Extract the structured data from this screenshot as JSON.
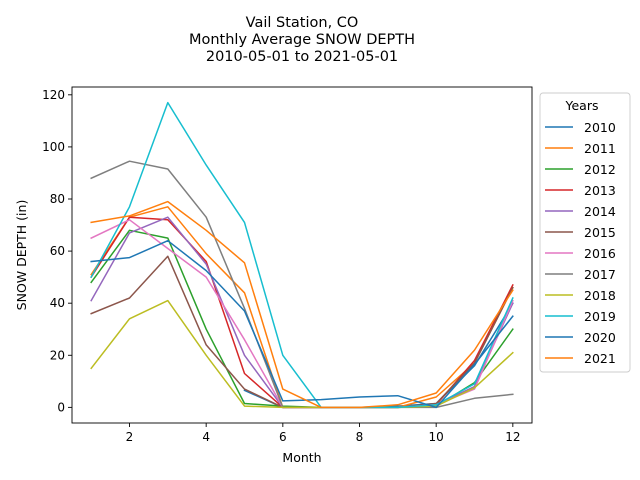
{
  "chart_data": {
    "type": "line",
    "title_lines": [
      "Vail Station, CO",
      "Monthly Average SNOW DEPTH",
      "2010-05-01 to 2021-05-01"
    ],
    "xlabel": "Month",
    "ylabel": "SNOW DEPTH (in)",
    "xlim": [
      0.5,
      12.5
    ],
    "ylim": [
      -6,
      123
    ],
    "xticks": [
      2,
      4,
      6,
      8,
      10,
      12
    ],
    "yticks": [
      0,
      20,
      40,
      60,
      80,
      100,
      120
    ],
    "grid": false,
    "legend_title": "Years",
    "legend_placement": "outside-right",
    "x": [
      1,
      2,
      3,
      4,
      5,
      6,
      7,
      8,
      9,
      10,
      11,
      12
    ],
    "series": [
      {
        "name": "2010",
        "color": "#1f77b4",
        "values": [
          null,
          null,
          null,
          null,
          6.5,
          0,
          0,
          0,
          0.5,
          1.5,
          16,
          40
        ]
      },
      {
        "name": "2011",
        "color": "#ff7f0e",
        "values": [
          51,
          73,
          77,
          59,
          44,
          0,
          0,
          0,
          0,
          4,
          17,
          46
        ]
      },
      {
        "name": "2012",
        "color": "#2ca02c",
        "values": [
          48,
          68,
          65,
          30,
          1.5,
          0.5,
          0,
          0,
          0,
          0.5,
          9.5,
          30
        ]
      },
      {
        "name": "2013",
        "color": "#d62728",
        "values": [
          50,
          73,
          72,
          56,
          13,
          0,
          0,
          0,
          0,
          1,
          18,
          47
        ]
      },
      {
        "name": "2014",
        "color": "#9467bd",
        "values": [
          41,
          67,
          73,
          55,
          20,
          0,
          0,
          0,
          0,
          1,
          8,
          40
        ]
      },
      {
        "name": "2015",
        "color": "#8c564b",
        "values": [
          36,
          42,
          58,
          24,
          7,
          0,
          0,
          0,
          0,
          1.5,
          17,
          46
        ]
      },
      {
        "name": "2016",
        "color": "#e377c2",
        "values": [
          65,
          72,
          61,
          50,
          26,
          0,
          0,
          0,
          0,
          1,
          7,
          41
        ]
      },
      {
        "name": "2017",
        "color": "#7f7f7f",
        "values": [
          88,
          94.5,
          91.5,
          73,
          38,
          0,
          0,
          0,
          0,
          0,
          3.5,
          5
        ]
      },
      {
        "name": "2018",
        "color": "#bcbd22",
        "values": [
          15,
          34,
          41,
          20,
          0.5,
          0,
          0,
          0,
          0,
          0.5,
          7.5,
          21
        ]
      },
      {
        "name": "2019",
        "color": "#17becf",
        "values": [
          50,
          77,
          117,
          93,
          71,
          20,
          0,
          0,
          0,
          1,
          9,
          42
        ]
      },
      {
        "name": "2020",
        "color": "#1f77b4",
        "values": [
          56,
          57.5,
          64,
          52.5,
          37,
          2.5,
          3,
          4,
          4.5,
          0,
          16.5,
          35
        ]
      },
      {
        "name": "2021",
        "color": "#ff7f0e",
        "values": [
          71,
          73.5,
          79,
          68,
          55.5,
          7,
          0,
          0,
          1,
          5.5,
          22,
          45
        ]
      }
    ]
  }
}
